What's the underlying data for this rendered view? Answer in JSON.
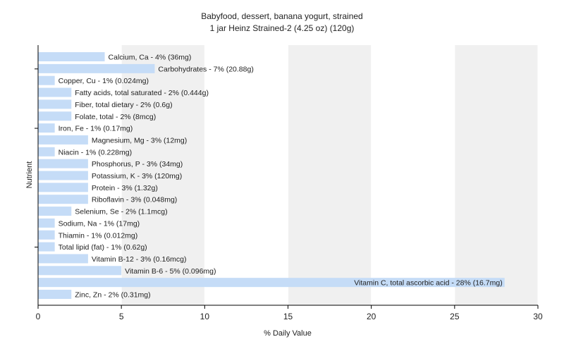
{
  "chart_data": {
    "type": "bar",
    "orientation": "horizontal",
    "title": "Babyfood, dessert, banana yogurt, strained",
    "subtitle": "1 jar Heinz Strained-2 (4.25 oz) (120g)",
    "xlabel": "% Daily Value",
    "ylabel": "Nutrient",
    "xlim": [
      0,
      30
    ],
    "xticks": [
      0,
      5,
      10,
      15,
      20,
      25,
      30
    ],
    "grid": true,
    "colors": {
      "bar": "#c5dcf7",
      "bar_stroke": "#a9c6ee",
      "band": "#f0f0f0",
      "axis": "#000000"
    },
    "categories": [
      "Calcium, Ca - 4% (36mg)",
      "Carbohydrates - 7% (20.88g)",
      "Copper, Cu - 1% (0.024mg)",
      "Fatty acids, total saturated - 2% (0.444g)",
      "Fiber, total dietary - 2% (0.6g)",
      "Folate, total - 2% (8mcg)",
      "Iron, Fe - 1% (0.17mg)",
      "Magnesium, Mg - 3% (12mg)",
      "Niacin - 1% (0.228mg)",
      "Phosphorus, P - 3% (34mg)",
      "Potassium, K - 3% (120mg)",
      "Protein - 3% (1.32g)",
      "Riboflavin - 3% (0.048mg)",
      "Selenium, Se - 2% (1.1mcg)",
      "Sodium, Na - 1% (17mg)",
      "Thiamin - 1% (0.012mg)",
      "Total lipid (fat) - 1% (0.62g)",
      "Vitamin B-12 - 3% (0.16mcg)",
      "Vitamin B-6 - 5% (0.096mg)",
      "Vitamin C, total ascorbic acid - 28% (16.7mg)",
      "Zinc, Zn - 2% (0.31mg)"
    ],
    "values": [
      4,
      7,
      1,
      2,
      2,
      2,
      1,
      3,
      1,
      3,
      3,
      3,
      3,
      2,
      1,
      1,
      1,
      3,
      5,
      28,
      2
    ]
  }
}
